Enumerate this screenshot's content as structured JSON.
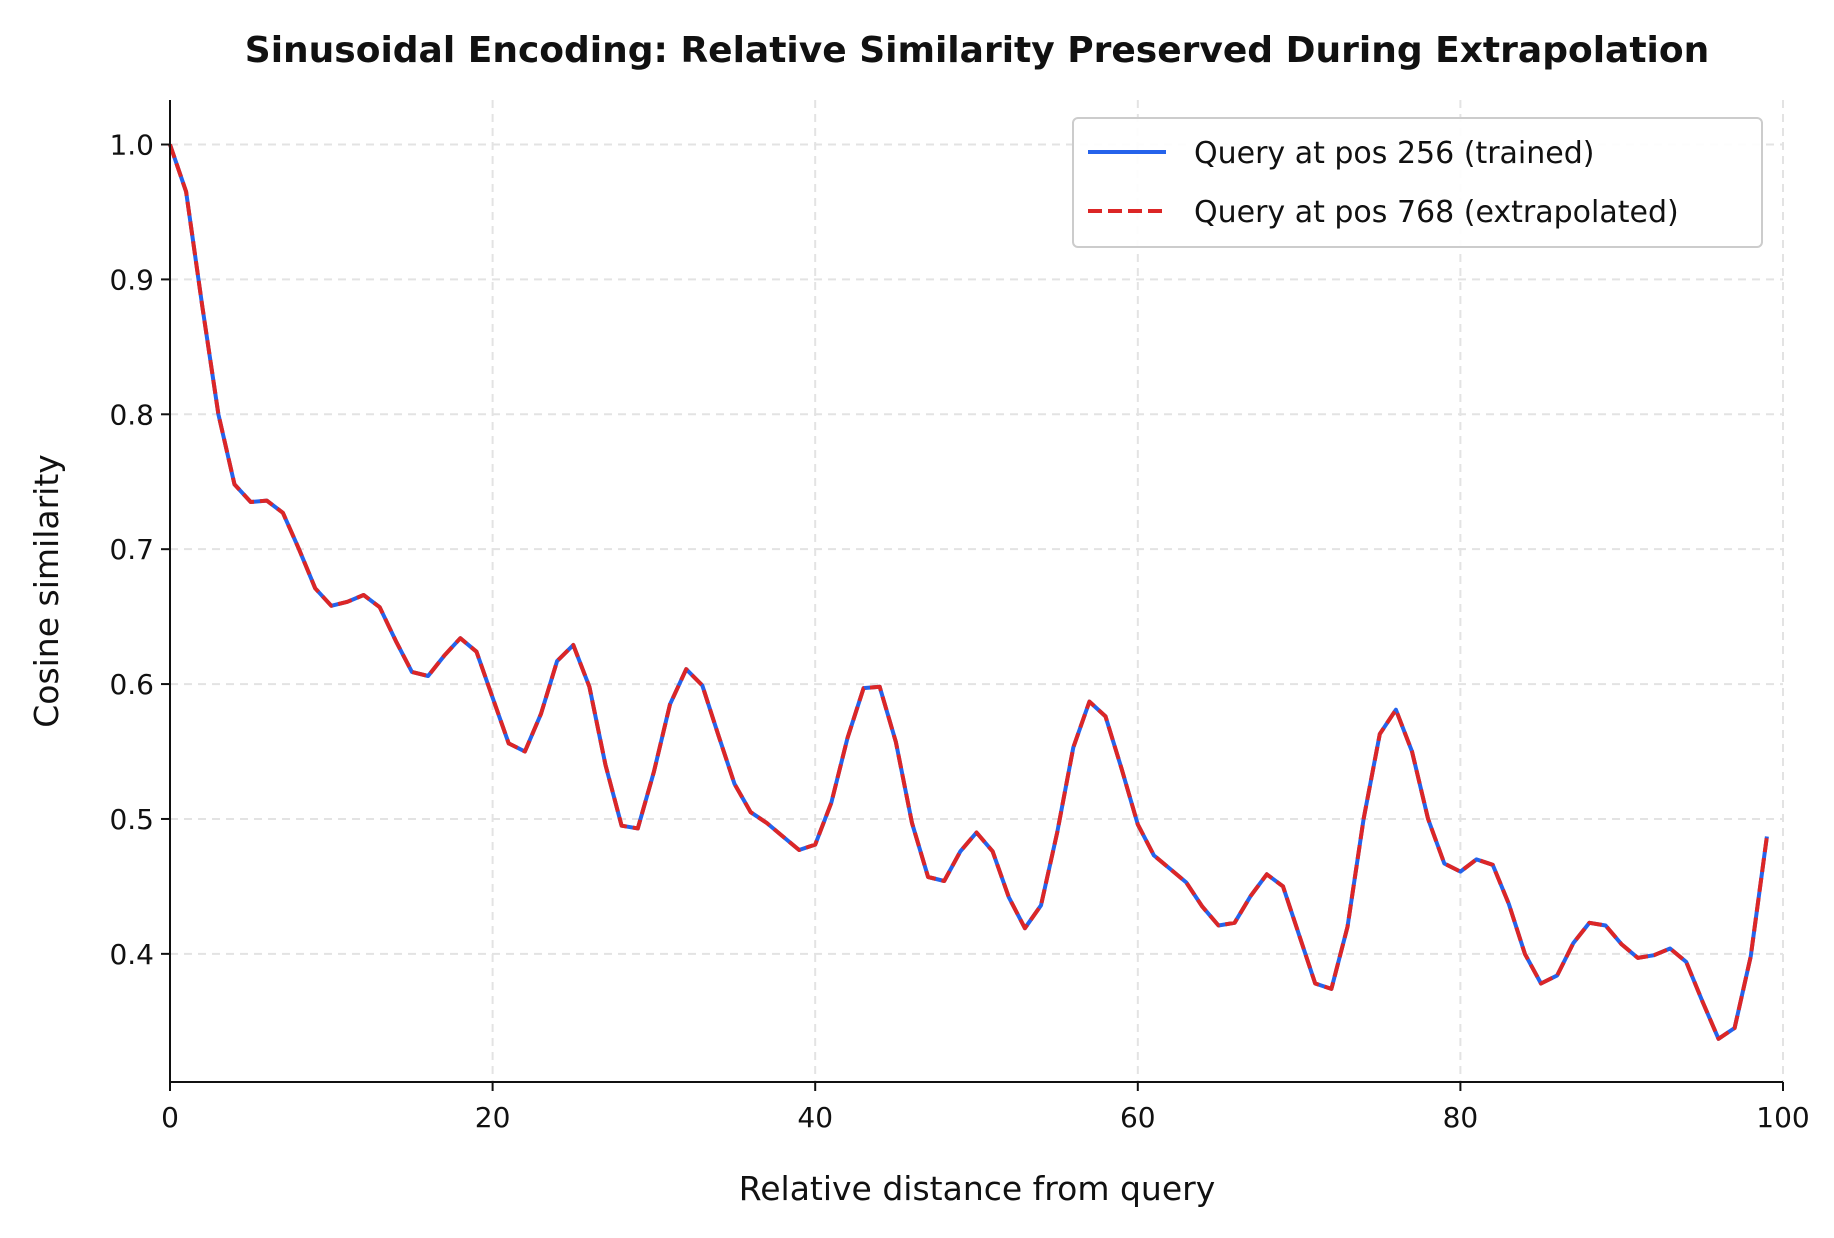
{
  "chart_data": {
    "type": "line",
    "title": "Sinusoidal Encoding: Relative Similarity Preserved During Extrapolation",
    "xlabel": "Relative distance from query",
    "ylabel": "Cosine similarity",
    "xlim": [
      0,
      100
    ],
    "ylim": [
      0.305,
      1.033
    ],
    "xticks": [
      0,
      20,
      40,
      60,
      80,
      100
    ],
    "yticks": [
      0.4,
      0.5,
      0.6,
      0.7,
      0.8,
      0.9,
      1.0
    ],
    "xtick_labels": [
      "0",
      "20",
      "40",
      "60",
      "80",
      "100"
    ],
    "ytick_labels": [
      "0.4",
      "0.5",
      "0.6",
      "0.7",
      "0.8",
      "0.9",
      "1.0"
    ],
    "grid": true,
    "legend_position": "top-right",
    "x": [
      0,
      1,
      2,
      3,
      4,
      5,
      6,
      7,
      8,
      9,
      10,
      11,
      12,
      13,
      14,
      15,
      16,
      17,
      18,
      19,
      20,
      21,
      22,
      23,
      24,
      25,
      26,
      27,
      28,
      29,
      30,
      31,
      32,
      33,
      34,
      35,
      36,
      37,
      38,
      39,
      40,
      41,
      42,
      43,
      44,
      45,
      46,
      47,
      48,
      49,
      50,
      51,
      52,
      53,
      54,
      55,
      56,
      57,
      58,
      59,
      60,
      61,
      62,
      63,
      64,
      65,
      66,
      67,
      68,
      69,
      70,
      71,
      72,
      73,
      74,
      75,
      76,
      77,
      78,
      79,
      80,
      81,
      82,
      83,
      84,
      85,
      86,
      87,
      88,
      89,
      90,
      91,
      92,
      93,
      94,
      95,
      96,
      97,
      98,
      99
    ],
    "series": [
      {
        "name": "Query at pos 256 (trained)",
        "color": "#2563eb",
        "style": "solid",
        "values": [
          1.0,
          0.965,
          0.88,
          0.8,
          0.748,
          0.735,
          0.736,
          0.727,
          0.7,
          0.671,
          0.658,
          0.661,
          0.666,
          0.657,
          0.632,
          0.609,
          0.606,
          0.621,
          0.634,
          0.624,
          0.59,
          0.556,
          0.55,
          0.578,
          0.617,
          0.629,
          0.598,
          0.54,
          0.495,
          0.493,
          0.535,
          0.585,
          0.611,
          0.599,
          0.562,
          0.526,
          0.505,
          0.497,
          0.487,
          0.477,
          0.481,
          0.512,
          0.56,
          0.597,
          0.598,
          0.557,
          0.497,
          0.457,
          0.454,
          0.476,
          0.49,
          0.476,
          0.442,
          0.419,
          0.436,
          0.49,
          0.553,
          0.587,
          0.576,
          0.537,
          0.496,
          0.473,
          0.463,
          0.453,
          0.435,
          0.421,
          0.423,
          0.443,
          0.459,
          0.45,
          0.414,
          0.378,
          0.374,
          0.42,
          0.5,
          0.563,
          0.581,
          0.55,
          0.5,
          0.467,
          0.461,
          0.47,
          0.466,
          0.437,
          0.4,
          0.378,
          0.384,
          0.408,
          0.423,
          0.421,
          0.407,
          0.397,
          0.399,
          0.404,
          0.394,
          0.365,
          0.337,
          0.345,
          0.398,
          0.487
        ]
      },
      {
        "name": "Query at pos 768 (extrapolated)",
        "color": "#dc2626",
        "style": "dashed",
        "values": [
          1.0,
          0.965,
          0.88,
          0.8,
          0.748,
          0.735,
          0.736,
          0.727,
          0.7,
          0.671,
          0.658,
          0.661,
          0.666,
          0.657,
          0.632,
          0.609,
          0.606,
          0.621,
          0.634,
          0.624,
          0.59,
          0.556,
          0.55,
          0.578,
          0.617,
          0.629,
          0.598,
          0.54,
          0.495,
          0.493,
          0.535,
          0.585,
          0.611,
          0.599,
          0.562,
          0.526,
          0.505,
          0.497,
          0.487,
          0.477,
          0.481,
          0.512,
          0.56,
          0.597,
          0.598,
          0.557,
          0.497,
          0.457,
          0.454,
          0.476,
          0.49,
          0.476,
          0.442,
          0.419,
          0.436,
          0.49,
          0.553,
          0.587,
          0.576,
          0.537,
          0.496,
          0.473,
          0.463,
          0.453,
          0.435,
          0.421,
          0.423,
          0.443,
          0.459,
          0.45,
          0.414,
          0.378,
          0.374,
          0.42,
          0.5,
          0.563,
          0.581,
          0.55,
          0.5,
          0.467,
          0.461,
          0.47,
          0.466,
          0.437,
          0.4,
          0.378,
          0.384,
          0.408,
          0.423,
          0.421,
          0.407,
          0.397,
          0.399,
          0.404,
          0.394,
          0.365,
          0.337,
          0.345,
          0.398,
          0.487
        ]
      }
    ]
  }
}
